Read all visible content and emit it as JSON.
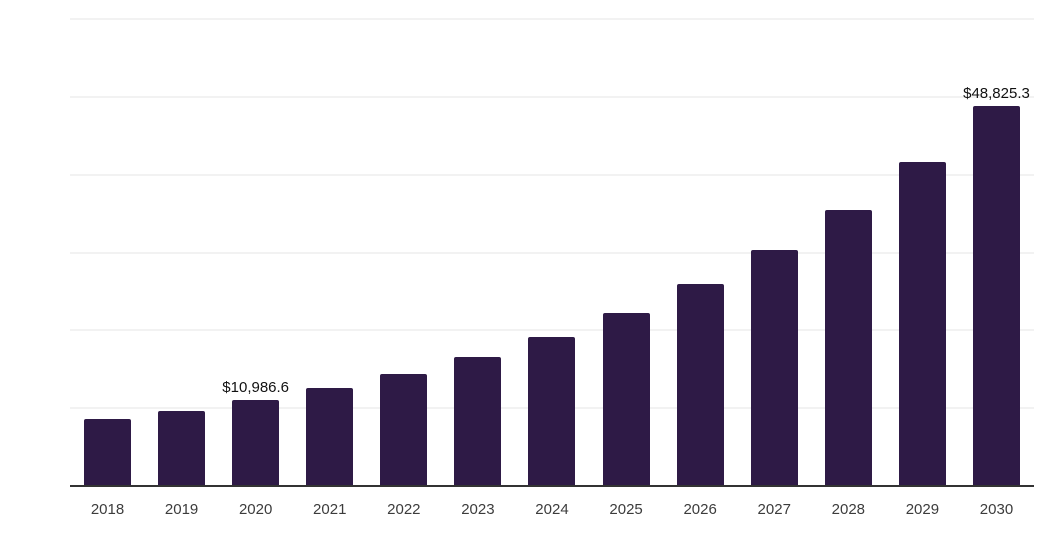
{
  "page": {
    "background": "#ffffff"
  },
  "chart_data": {
    "type": "bar",
    "title": "",
    "xlabel": "",
    "ylabel": "",
    "categories": [
      "2018",
      "2019",
      "2020",
      "2021",
      "2022",
      "2023",
      "2024",
      "2025",
      "2026",
      "2027",
      "2028",
      "2029",
      "2030"
    ],
    "values": [
      8600,
      9700,
      10986.6,
      12600,
      14400,
      16600,
      19100,
      22200,
      25900,
      30300,
      35400,
      41600,
      48825.3
    ],
    "data_labels": {
      "2020": "$10,986.6",
      "2030": "$48,825.3"
    },
    "ylim": [
      0,
      60000
    ],
    "gridline_step": 10000,
    "grid": "horizontal-only",
    "y_axis_tick_labels": "none",
    "legend_position": "none",
    "colors": {
      "bar": "#2e1a46",
      "axis_line": "#333333",
      "gridline": "#f2f2f2",
      "tick_label": "#3c3c3c",
      "data_label": "#111111",
      "background": "#ffffff"
    }
  }
}
